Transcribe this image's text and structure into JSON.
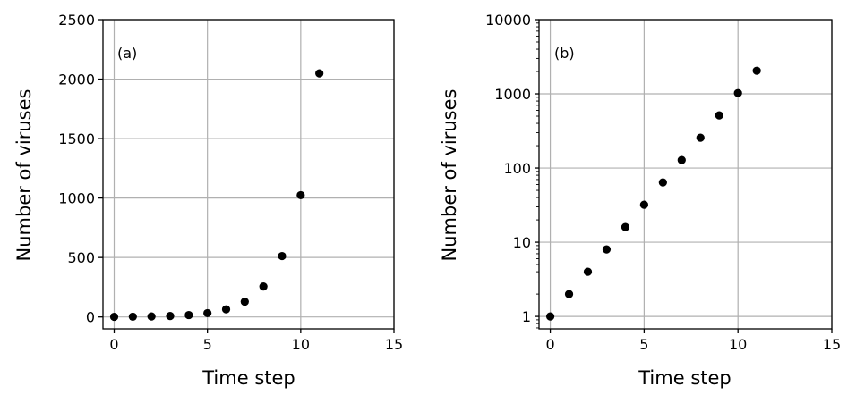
{
  "chart_data": [
    {
      "type": "scatter",
      "panel_label": "(a)",
      "xlabel": "Time step",
      "ylabel": "Number of viruses",
      "xlim": [
        -0.6,
        15
      ],
      "ylim": [
        -100,
        2500
      ],
      "yscale": "linear",
      "xticks": [
        0,
        5,
        10,
        15
      ],
      "yticks": [
        0,
        500,
        1000,
        1500,
        2000,
        2500
      ],
      "ytick_labels": [
        "0",
        "500",
        "1000",
        "1500",
        "2000",
        "2500"
      ],
      "grid": true,
      "marker_color": "#000000",
      "series": [
        {
          "x": [
            0,
            1,
            2,
            3,
            4,
            5,
            6,
            7,
            8,
            9,
            10,
            11
          ],
          "values": [
            1,
            2,
            4,
            8,
            16,
            32,
            64,
            128,
            256,
            512,
            1024,
            2048
          ]
        }
      ]
    },
    {
      "type": "scatter",
      "panel_label": "(b)",
      "xlabel": "Time step",
      "ylabel": "Number of viruses",
      "xlim": [
        -0.6,
        15
      ],
      "ylim": [
        0.68,
        10000
      ],
      "yscale": "log",
      "xticks": [
        0,
        5,
        10,
        15
      ],
      "yticks": [
        1,
        10,
        100,
        1000,
        10000
      ],
      "ytick_labels": [
        "1",
        "10",
        "100",
        "1000",
        "10000"
      ],
      "grid": true,
      "marker_color": "#000000",
      "series": [
        {
          "x": [
            0,
            1,
            2,
            3,
            4,
            5,
            6,
            7,
            8,
            9,
            10,
            11
          ],
          "values": [
            1,
            2,
            4,
            8,
            16,
            32,
            64,
            128,
            256,
            512,
            1024,
            2048
          ]
        }
      ]
    }
  ]
}
